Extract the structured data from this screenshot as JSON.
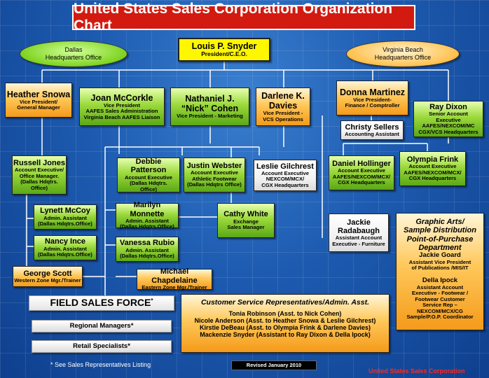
{
  "title": "United States Sales Corporation Organization Chart",
  "offices": {
    "dallas": [
      "Dallas",
      "Headquarters Office"
    ],
    "virginia": [
      "Virginia Beach",
      "Headquarters Office"
    ]
  },
  "president": {
    "name": "Louis P. Snyder",
    "title": "President/C.E.O."
  },
  "heather": {
    "name": "Heather Snowa",
    "title": [
      "Vice President/",
      "General Manager"
    ]
  },
  "joan": {
    "name": "Joan McCorkle",
    "title": [
      "Vice President",
      "AAFES Sales Administration",
      "Virginia Beach AAFES Liaison"
    ]
  },
  "nathaniel": {
    "name": [
      "Nathaniel J.",
      "“Nick” Cohen"
    ],
    "title": "Vice President -  Marketing"
  },
  "darlene": {
    "name": [
      "Darlene K.",
      "Davies"
    ],
    "title": [
      "Vice President -",
      "VCS Operations"
    ]
  },
  "donna": {
    "name": "Donna Martinez",
    "title": [
      "Vice President-",
      "Finance / Comptroller"
    ]
  },
  "ray": {
    "name": "Ray Dixon",
    "title": [
      "Senior Account",
      "Executive",
      "AAFES/NEXCOM/MC",
      "CGX/VCS Headquarters"
    ]
  },
  "christy": {
    "name": "Christy Sellers",
    "title": "Accounting Assistant"
  },
  "russell": {
    "name": "Russell Jones",
    "title": [
      "Account Executive/",
      "Office Manager.",
      "(Dallas Hdqtrs.",
      "Office)"
    ]
  },
  "debbie": {
    "name": "Debbie Patterson",
    "title": [
      "Account Executive",
      "(Dallas Hdqtrs.",
      "Office)"
    ]
  },
  "justin": {
    "name": "Justin Webster",
    "title": [
      "Account Executive",
      "Athletic Footwear",
      "(Dallas Hdqtrs Office)"
    ]
  },
  "leslie": {
    "name": "Leslie Gilchrest",
    "title": [
      "Account Executive",
      "NEXCOM/MCX/",
      "CGX Headquarters"
    ]
  },
  "daniel": {
    "name": "Daniel Hollinger",
    "title": [
      "Account Executive",
      "AAFES/NEXCOM/MCX/",
      "CGX Headquarters"
    ]
  },
  "olympia": {
    "name": "Olympia Frink",
    "title": [
      "Account Executive",
      "AAFES/NEXCOM/MCX/",
      "CGX Headquarters"
    ]
  },
  "lynett": {
    "name": "Lynett McCoy",
    "title": [
      "Admin. Assistant",
      "(Dallas Hdqtrs.Office)"
    ]
  },
  "marilyn": {
    "name": "Marilyn Monnette",
    "title": [
      "Admin. Assistant",
      "(Dallas Hdqtrs.Office)"
    ]
  },
  "cathy": {
    "name": "Cathy White",
    "title": [
      "Exchange",
      "Sales Manager"
    ]
  },
  "jackie_r": {
    "name": [
      "Jackie",
      "Radabaugh"
    ],
    "title": [
      "Assistant Account",
      "Executive - Furniture"
    ]
  },
  "nancy": {
    "name": "Nancy Ince",
    "title": [
      "Admin. Assistant",
      "(Dallas Hdqtrs.Office)"
    ]
  },
  "vanessa": {
    "name": "Vanessa Rubio",
    "title": [
      "Admin. Assistant",
      "(Dallas Hdqtrs.Office)"
    ]
  },
  "george": {
    "name": "George Scott",
    "title": "Western Zone Mgr./Trainer"
  },
  "michael": {
    "name": "Michael Chapdelaine",
    "title": "Eastern Zone Mgr./Trainer"
  },
  "graphic": {
    "heading": [
      "Graphic Arts/",
      "Sample Distribution",
      "Point-of-Purchase",
      "Department"
    ],
    "p1_name": "Jackie Goard",
    "p1_title": [
      "Assistant Vice President",
      "of Publications /MIS/IT"
    ],
    "p2_name": "Della Ipock",
    "p2_title": [
      "Assistant Account",
      "Executive - Footwear /",
      "Footwear Customer",
      "Service Rep –",
      "NEXCOM/MCX/CG",
      "Sample/P.O.P. Coordinator"
    ]
  },
  "field_sales": {
    "label": "FIELD SALES FORCE",
    "mark": "*"
  },
  "regional": "Regional Managers*",
  "retail": "Retail Specialists*",
  "customer_service": {
    "heading": "Customer Service Representatives/Admin. Asst.",
    "lines": [
      "Tonia Robinson (Asst. to Nick Cohen)",
      "Nicole Anderson (Asst. to Heather Snowa & Leslie Gilchrest)",
      "Kirstie DeBeau (Asst. to Olympia Frink & Darlene Davies)",
      "Mackenzie Snyder (Assistant to Ray Dixon & Della Ipock)"
    ]
  },
  "footnote": "* See Sales Representatives Listing",
  "revised": "Revised January 2010",
  "corp": "United States Sales Corporation",
  "colors": {
    "title_bg": "#d21a10",
    "president_bg": "#fff700",
    "corp_text": "#ff2a1a"
  }
}
